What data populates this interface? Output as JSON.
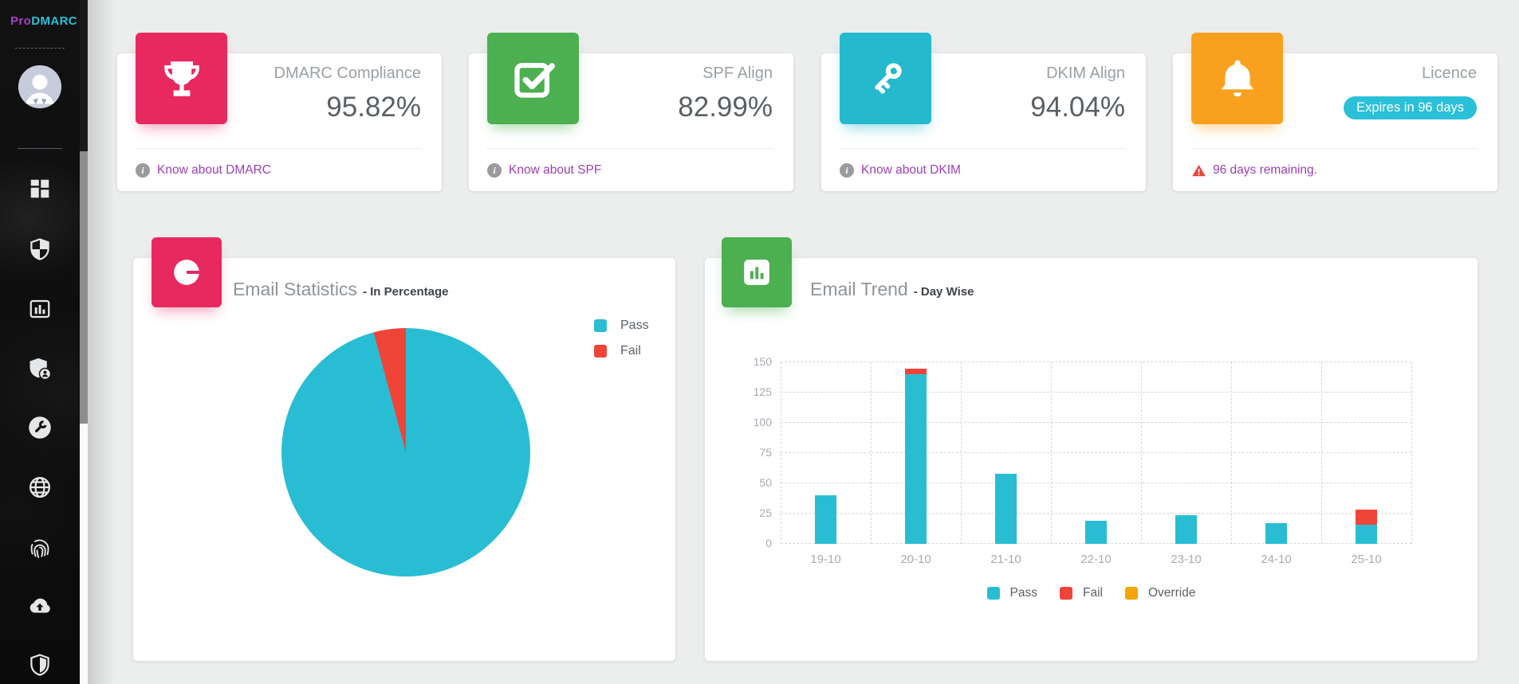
{
  "sidebar": {
    "logo": {
      "pro": "Pro",
      "dmarc": "DMARC"
    },
    "nav_icons": [
      "dashboard",
      "shield",
      "reports",
      "account-shield",
      "tools",
      "globe",
      "forensics",
      "cloud-upload",
      "security"
    ]
  },
  "stat_cards": [
    {
      "title": "DMARC Compliance",
      "value": "95.82%",
      "link": "Know about DMARC",
      "icon": "trophy-icon",
      "color": "#e8295f"
    },
    {
      "title": "SPF Align",
      "value": "82.99%",
      "link": "Know about SPF",
      "icon": "check-square-icon",
      "color": "#4caf50"
    },
    {
      "title": "DKIM Align",
      "value": "94.04%",
      "link": "Know about DKIM",
      "icon": "key-icon",
      "color": "#25b9cd"
    },
    {
      "title": "Licence",
      "badge": "Expires in 96 days",
      "badge_color": "#2ac0d8",
      "warning": "96 days remaining.",
      "icon": "bell-icon",
      "color": "#f9a11e"
    }
  ],
  "charts": {
    "statistics": {
      "title": "Email Statistics",
      "subtitle": "- In Percentage"
    },
    "trend": {
      "title": "Email Trend",
      "subtitle": "- Day Wise"
    }
  },
  "chart_data": [
    {
      "type": "pie",
      "title": "Email Statistics - In Percentage",
      "labels": [
        "Pass",
        "Fail"
      ],
      "values": [
        95.82,
        4.18
      ],
      "colors": [
        "#29bdd4",
        "#ef4438"
      ],
      "legend_position": "right"
    },
    {
      "type": "bar",
      "title": "Email Trend - Day Wise",
      "stacked": true,
      "categories": [
        "19-10",
        "20-10",
        "21-10",
        "22-10",
        "23-10",
        "24-10",
        "25-10"
      ],
      "series": [
        {
          "name": "Pass",
          "color": "#29bdd4",
          "values": [
            40,
            140,
            58,
            19,
            24,
            17,
            16
          ]
        },
        {
          "name": "Fail",
          "color": "#ef4438",
          "values": [
            0,
            5,
            0,
            0,
            0,
            0,
            12
          ]
        },
        {
          "name": "Override",
          "color": "#f5a50b",
          "values": [
            0,
            0,
            0,
            0,
            0,
            0,
            0
          ]
        }
      ],
      "ylim": [
        0,
        150
      ],
      "yticks": [
        0,
        25,
        50,
        75,
        100,
        125,
        150
      ],
      "grid": "dashed",
      "legend_position": "bottom"
    }
  ]
}
